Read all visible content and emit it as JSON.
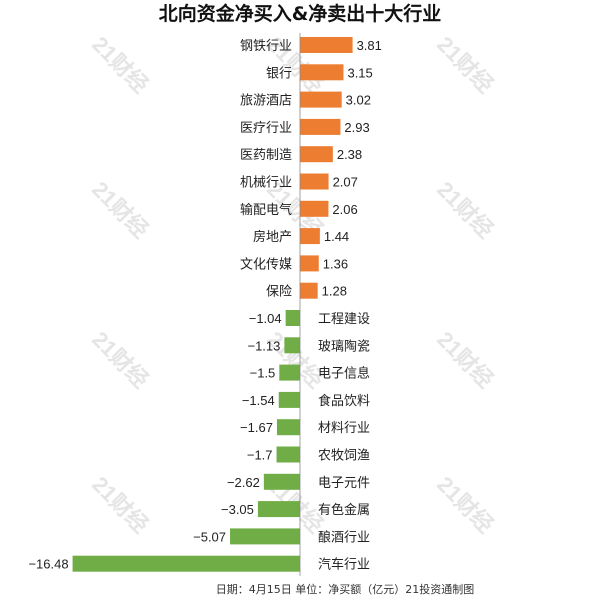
{
  "watermark_text": "21财经",
  "footer_text": "日期：4月15日 单位：净买额（亿元）21投资通制图",
  "colors": {
    "positive": "#ed7d31",
    "negative": "#70ad47",
    "axis": "#888888",
    "text": "#222222"
  },
  "chart_data": {
    "type": "bar",
    "orientation": "horizontal",
    "title": "北向资金净买入&净卖出十大行业",
    "xlabel": "",
    "ylabel": "",
    "unit": "净买额（亿元）",
    "categories": [
      "钢铁行业",
      "银行",
      "旅游酒店",
      "医疗行业",
      "医药制造",
      "机械行业",
      "输配电气",
      "房地产",
      "文化传媒",
      "保险",
      "工程建设",
      "玻璃陶瓷",
      "电子信息",
      "食品饮料",
      "材料行业",
      "农牧饲渔",
      "电子元件",
      "有色金属",
      "酿酒行业",
      "汽车行业"
    ],
    "values": [
      3.81,
      3.15,
      3.02,
      2.93,
      2.38,
      2.07,
      2.06,
      1.44,
      1.36,
      1.28,
      -1.04,
      -1.13,
      -1.5,
      -1.54,
      -1.67,
      -1.7,
      -2.62,
      -3.05,
      -5.07,
      -16.48
    ],
    "value_labels": [
      "3.81",
      "3.15",
      "3.02",
      "2.93",
      "2.38",
      "2.07",
      "2.06",
      "1.44",
      "1.36",
      "1.28",
      "−1.04",
      "−1.13",
      "−1.5",
      "−1.54",
      "−1.67",
      "−1.7",
      "−2.62",
      "−3.05",
      "−5.07",
      "−16.48"
    ],
    "legend": "none",
    "grid": false
  }
}
